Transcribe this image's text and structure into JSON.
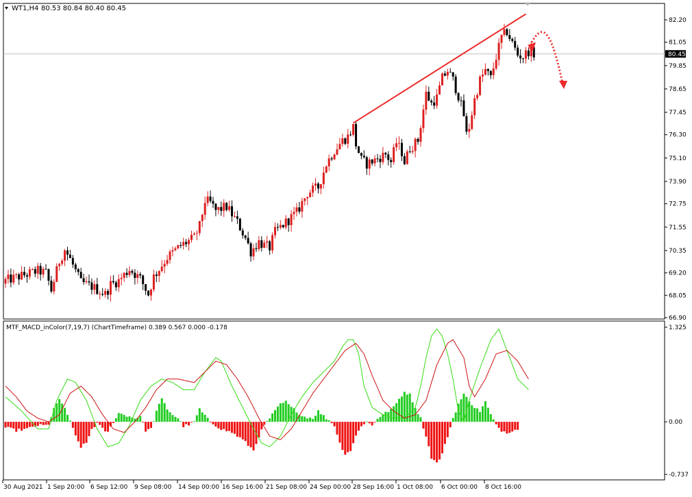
{
  "symbol_header": {
    "label": "WT1,H4",
    "ohlc": "80.53 80.84 80.40 80.45"
  },
  "price_panel": {
    "y_ticks": [
      "82.20",
      "81.05",
      "79.85",
      "78.65",
      "77.45",
      "76.30",
      "75.10",
      "73.90",
      "72.75",
      "71.55",
      "70.35",
      "69.20",
      "68.05",
      "66.90"
    ],
    "last_price": "80.45",
    "colors": {
      "bull": "#dd1f1f",
      "bear": "#000000",
      "trendline": "#ee2a2a",
      "arrow": "#ee2a2a",
      "last_line": "#c0c0c0"
    }
  },
  "indicator_panel": {
    "title": "MTF_MACD_inColor(7,19,7) (ChartTimeframe) 0.389 0.567 0.000 -0.178",
    "y_ticks": [
      "1.325",
      "0.00",
      "-0.737"
    ],
    "colors": {
      "hist_up": "#22cc22",
      "hist_down": "#ee1111",
      "line_fast": "#33dd11",
      "line_slow": "#cc1111"
    }
  },
  "x_ticks": [
    "30 Aug 2021",
    "1 Sep 20:00",
    "6 Sep 12:00",
    "9 Sep 08:00",
    "14 Sep 00:00",
    "16 Sep 16:00",
    "21 Sep 08:00",
    "24 Sep 00:00",
    "28 Sep 16:00",
    "1 Oct 08:00",
    "6 Oct 00:00",
    "8 Oct 16:00"
  ],
  "chart_data": {
    "type": "candlestick",
    "timeframe": "H4",
    "price_range": [
      66.9,
      82.2
    ],
    "close_anchors": [
      [
        0,
        68.8
      ],
      [
        12,
        69.3
      ],
      [
        15,
        69.2
      ],
      [
        17,
        68.3
      ],
      [
        20,
        69.8
      ],
      [
        22,
        70.4
      ],
      [
        24,
        69.9
      ],
      [
        28,
        68.7
      ],
      [
        32,
        68.5
      ],
      [
        37,
        68.1
      ],
      [
        39,
        68.6
      ],
      [
        42,
        68.8
      ],
      [
        46,
        69.4
      ],
      [
        50,
        68.9
      ],
      [
        53,
        68.1
      ],
      [
        55,
        69.0
      ],
      [
        60,
        70.0
      ],
      [
        65,
        70.6
      ],
      [
        70,
        71.0
      ],
      [
        72,
        71.6
      ],
      [
        74,
        72.9
      ],
      [
        76,
        72.8
      ],
      [
        78,
        72.4
      ],
      [
        82,
        72.6
      ],
      [
        86,
        71.8
      ],
      [
        89,
        71.0
      ],
      [
        91,
        70.3
      ],
      [
        94,
        70.8
      ],
      [
        96,
        70.6
      ],
      [
        98,
        70.5
      ],
      [
        100,
        71.3
      ],
      [
        104,
        71.8
      ],
      [
        108,
        72.3
      ],
      [
        112,
        73.3
      ],
      [
        116,
        73.6
      ],
      [
        119,
        74.8
      ],
      [
        122,
        75.5
      ],
      [
        125,
        76.0
      ],
      [
        127,
        76.2
      ],
      [
        129,
        76.7
      ],
      [
        130,
        75.8
      ],
      [
        132,
        75.0
      ],
      [
        134,
        74.8
      ],
      [
        137,
        75.0
      ],
      [
        141,
        75.3
      ],
      [
        143,
        74.9
      ],
      [
        145,
        75.9
      ],
      [
        147,
        75.4
      ],
      [
        148,
        74.9
      ],
      [
        150,
        75.6
      ],
      [
        153,
        76.0
      ],
      [
        154,
        76.8
      ],
      [
        156,
        78.4
      ],
      [
        158,
        77.9
      ],
      [
        160,
        78.2
      ],
      [
        162,
        79.2
      ],
      [
        164,
        79.6
      ],
      [
        166,
        79.1
      ],
      [
        168,
        78.3
      ],
      [
        170,
        77.3
      ],
      [
        171,
        76.3
      ],
      [
        172,
        76.7
      ],
      [
        174,
        78.1
      ],
      [
        176,
        79.1
      ],
      [
        178,
        79.6
      ],
      [
        180,
        79.2
      ],
      [
        182,
        80.3
      ],
      [
        184,
        81.3
      ],
      [
        186,
        81.6
      ],
      [
        188,
        81.0
      ],
      [
        190,
        80.4
      ],
      [
        192,
        80.3
      ],
      [
        194,
        80.6
      ],
      [
        196,
        80.45
      ]
    ],
    "trendline": {
      "from": [
        129,
        76.9
      ],
      "to": [
        193,
        82.5
      ]
    },
    "last_price": 80.45,
    "macd": {
      "params": "(7,19,7)",
      "values": [
        0.389,
        0.567,
        0.0,
        -0.178
      ],
      "range": [
        -0.737,
        1.325
      ],
      "fast_anchors": [
        [
          0,
          0.35
        ],
        [
          6,
          0.15
        ],
        [
          12,
          -0.1
        ],
        [
          16,
          -0.1
        ],
        [
          19,
          0.3
        ],
        [
          23,
          0.6
        ],
        [
          26,
          0.55
        ],
        [
          30,
          0.3
        ],
        [
          34,
          -0.1
        ],
        [
          38,
          -0.35
        ],
        [
          42,
          -0.3
        ],
        [
          46,
          -0.05
        ],
        [
          50,
          0.3
        ],
        [
          54,
          0.5
        ],
        [
          58,
          0.6
        ],
        [
          62,
          0.55
        ],
        [
          66,
          0.45
        ],
        [
          70,
          0.45
        ],
        [
          74,
          0.7
        ],
        [
          78,
          0.9
        ],
        [
          80,
          0.85
        ],
        [
          84,
          0.5
        ],
        [
          88,
          0.2
        ],
        [
          92,
          -0.1
        ],
        [
          95,
          -0.3
        ],
        [
          98,
          -0.35
        ],
        [
          102,
          -0.2
        ],
        [
          106,
          0.1
        ],
        [
          110,
          0.35
        ],
        [
          114,
          0.55
        ],
        [
          118,
          0.7
        ],
        [
          122,
          0.85
        ],
        [
          125,
          1.05
        ],
        [
          127,
          1.15
        ],
        [
          129,
          1.15
        ],
        [
          131,
          0.95
        ],
        [
          133,
          0.5
        ],
        [
          136,
          0.2
        ],
        [
          140,
          0.1
        ],
        [
          144,
          0.05
        ],
        [
          148,
          0.05
        ],
        [
          152,
          0.2
        ],
        [
          154,
          0.5
        ],
        [
          156,
          0.9
        ],
        [
          158,
          1.2
        ],
        [
          160,
          1.3
        ],
        [
          162,
          1.2
        ],
        [
          164,
          0.95
        ],
        [
          166,
          0.6
        ],
        [
          168,
          0.15
        ],
        [
          170,
          0.0
        ],
        [
          172,
          0.3
        ],
        [
          176,
          0.75
        ],
        [
          180,
          1.15
        ],
        [
          183,
          1.3
        ],
        [
          186,
          1.0
        ],
        [
          190,
          0.6
        ],
        [
          194,
          0.45
        ]
      ],
      "slow_anchors": [
        [
          0,
          0.5
        ],
        [
          4,
          0.35
        ],
        [
          8,
          0.15
        ],
        [
          12,
          0.05
        ],
        [
          16,
          0.0
        ],
        [
          20,
          0.1
        ],
        [
          24,
          0.4
        ],
        [
          28,
          0.5
        ],
        [
          32,
          0.35
        ],
        [
          36,
          0.1
        ],
        [
          40,
          -0.1
        ],
        [
          44,
          -0.15
        ],
        [
          48,
          0.0
        ],
        [
          52,
          0.2
        ],
        [
          56,
          0.45
        ],
        [
          60,
          0.6
        ],
        [
          64,
          0.6
        ],
        [
          70,
          0.55
        ],
        [
          74,
          0.7
        ],
        [
          78,
          0.85
        ],
        [
          82,
          0.8
        ],
        [
          86,
          0.6
        ],
        [
          90,
          0.35
        ],
        [
          94,
          0.05
        ],
        [
          98,
          -0.2
        ],
        [
          102,
          -0.25
        ],
        [
          106,
          -0.1
        ],
        [
          110,
          0.15
        ],
        [
          114,
          0.4
        ],
        [
          118,
          0.6
        ],
        [
          122,
          0.8
        ],
        [
          126,
          1.0
        ],
        [
          130,
          1.1
        ],
        [
          133,
          0.95
        ],
        [
          136,
          0.65
        ],
        [
          140,
          0.3
        ],
        [
          144,
          0.15
        ],
        [
          148,
          0.05
        ],
        [
          152,
          0.1
        ],
        [
          156,
          0.3
        ],
        [
          160,
          0.8
        ],
        [
          164,
          1.1
        ],
        [
          166,
          1.15
        ],
        [
          170,
          0.9
        ],
        [
          172,
          0.5
        ],
        [
          174,
          0.35
        ],
        [
          178,
          0.6
        ],
        [
          182,
          0.95
        ],
        [
          186,
          1.0
        ],
        [
          190,
          0.85
        ],
        [
          194,
          0.6
        ]
      ],
      "hist_anchors": [
        [
          0,
          -0.08
        ],
        [
          4,
          -0.12
        ],
        [
          8,
          -0.1
        ],
        [
          12,
          -0.05
        ],
        [
          16,
          -0.05
        ],
        [
          18,
          0.2
        ],
        [
          20,
          0.3
        ],
        [
          22,
          0.2
        ],
        [
          24,
          0.0
        ],
        [
          26,
          -0.2
        ],
        [
          28,
          -0.35
        ],
        [
          30,
          -0.3
        ],
        [
          32,
          -0.1
        ],
        [
          34,
          -0.02
        ],
        [
          36,
          -0.1
        ],
        [
          38,
          -0.15
        ],
        [
          40,
          0.0
        ],
        [
          42,
          0.12
        ],
        [
          44,
          0.1
        ],
        [
          48,
          0.05
        ],
        [
          50,
          0.08
        ],
        [
          52,
          -0.12
        ],
        [
          54,
          -0.1
        ],
        [
          56,
          0.15
        ],
        [
          58,
          0.32
        ],
        [
          60,
          0.18
        ],
        [
          62,
          0.1
        ],
        [
          64,
          0.05
        ],
        [
          66,
          -0.06
        ],
        [
          68,
          -0.04
        ],
        [
          70,
          0.0
        ],
        [
          72,
          0.18
        ],
        [
          74,
          0.08
        ],
        [
          76,
          0.0
        ],
        [
          78,
          -0.05
        ],
        [
          80,
          -0.1
        ],
        [
          84,
          -0.15
        ],
        [
          88,
          -0.25
        ],
        [
          92,
          -0.4
        ],
        [
          94,
          -0.2
        ],
        [
          96,
          -0.05
        ],
        [
          98,
          0.05
        ],
        [
          100,
          0.15
        ],
        [
          102,
          0.25
        ],
        [
          104,
          0.28
        ],
        [
          106,
          0.2
        ],
        [
          108,
          0.15
        ],
        [
          110,
          0.08
        ],
        [
          114,
          0.05
        ],
        [
          116,
          0.15
        ],
        [
          118,
          0.08
        ],
        [
          120,
          0.02
        ],
        [
          122,
          -0.05
        ],
        [
          124,
          -0.3
        ],
        [
          126,
          -0.45
        ],
        [
          128,
          -0.4
        ],
        [
          130,
          -0.2
        ],
        [
          132,
          -0.05
        ],
        [
          134,
          0.0
        ],
        [
          136,
          -0.05
        ],
        [
          138,
          0.05
        ],
        [
          140,
          0.1
        ],
        [
          142,
          0.15
        ],
        [
          144,
          0.2
        ],
        [
          146,
          0.32
        ],
        [
          148,
          0.42
        ],
        [
          150,
          0.38
        ],
        [
          152,
          0.2
        ],
        [
          154,
          0.05
        ],
        [
          156,
          -0.2
        ],
        [
          158,
          -0.5
        ],
        [
          160,
          -0.58
        ],
        [
          162,
          -0.45
        ],
        [
          164,
          -0.2
        ],
        [
          166,
          0.05
        ],
        [
          168,
          0.25
        ],
        [
          170,
          0.38
        ],
        [
          172,
          0.3
        ],
        [
          174,
          0.2
        ],
        [
          176,
          0.15
        ],
        [
          178,
          0.28
        ],
        [
          180,
          0.1
        ],
        [
          182,
          -0.05
        ],
        [
          184,
          -0.12
        ],
        [
          186,
          -0.15
        ],
        [
          188,
          -0.12
        ],
        [
          190,
          -0.1
        ]
      ]
    }
  }
}
